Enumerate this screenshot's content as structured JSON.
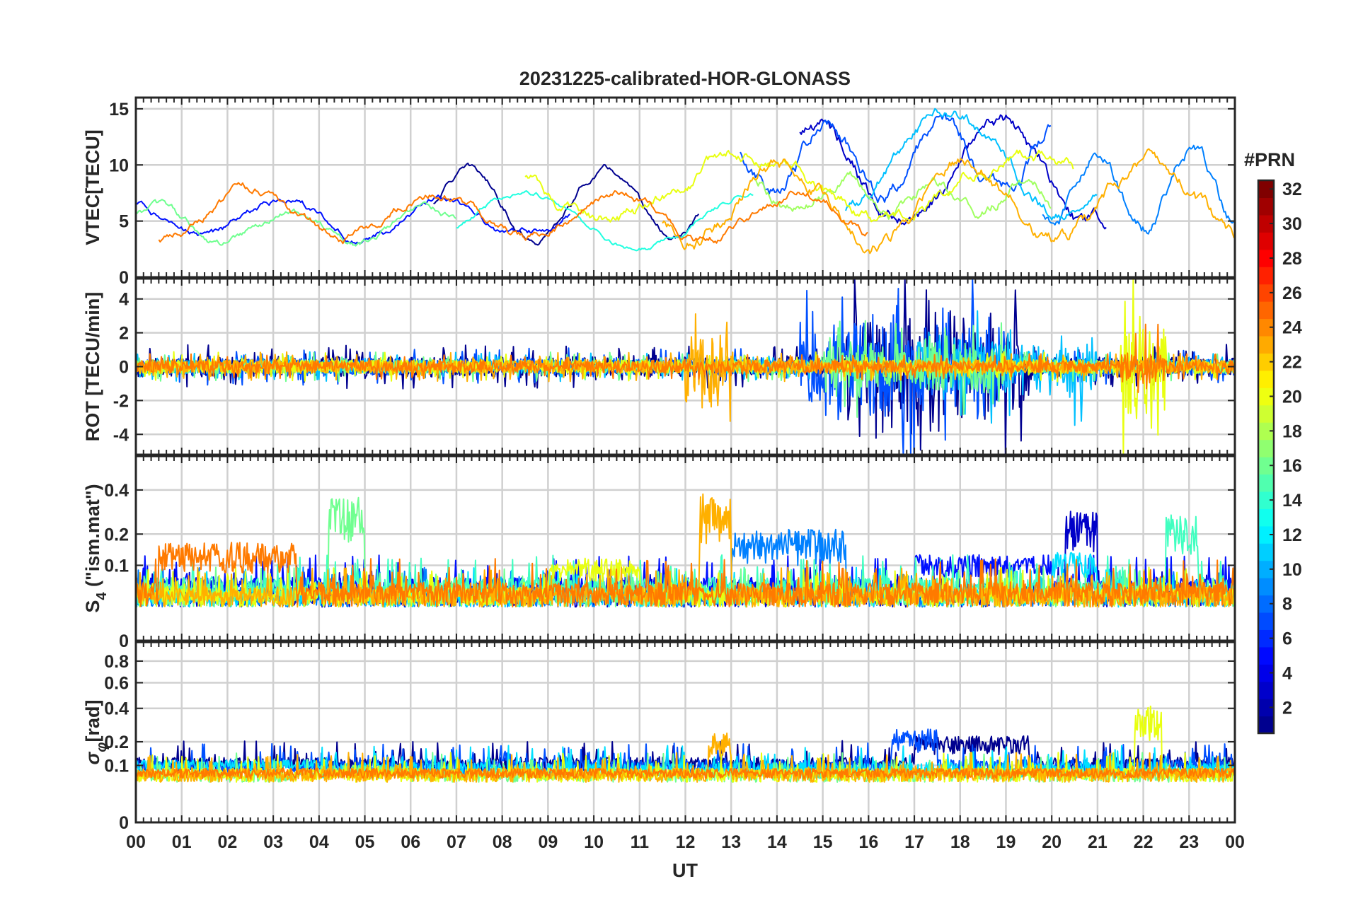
{
  "chart_data": {
    "type": "line",
    "title": "20231225-calibrated-HOR-GLONASS",
    "xlabel": "UT",
    "x_ticks": [
      "00",
      "01",
      "02",
      "03",
      "04",
      "05",
      "06",
      "07",
      "08",
      "09",
      "10",
      "11",
      "12",
      "13",
      "14",
      "15",
      "16",
      "17",
      "18",
      "19",
      "20",
      "21",
      "22",
      "23",
      "00"
    ],
    "xlim": [
      0,
      24
    ],
    "colorbar": {
      "label": "#PRN",
      "range": [
        1,
        32
      ],
      "ticks": [
        "32",
        "30",
        "28",
        "26",
        "24",
        "22",
        "20",
        "18",
        "16",
        "14",
        "12",
        "10",
        "8",
        "6",
        "4",
        "2"
      ],
      "colormap": "jet"
    },
    "panels": [
      {
        "name": "vtec",
        "ylabel": "VTEC[TECU]",
        "ylim": [
          0,
          16
        ],
        "yticks": [
          0,
          5,
          10,
          15
        ],
        "ytick_labels": [
          "0",
          "5",
          "10",
          "15"
        ],
        "series": [
          {
            "prn": 1,
            "color": "#00008f",
            "kind": "walk",
            "start": 6.5,
            "end": 12.3,
            "base": 6.5,
            "amp": 3.0,
            "period": 3.0,
            "noise": 0.4
          },
          {
            "prn": 2,
            "color": "#0000c8",
            "kind": "walk",
            "start": 14.5,
            "end": 21.2,
            "base": 9.0,
            "amp": 4.5,
            "period": 4.0,
            "noise": 0.9
          },
          {
            "prn": 4,
            "color": "#0010ff",
            "kind": "walk",
            "start": 0.0,
            "end": 9.5,
            "base": 5.2,
            "amp": 1.5,
            "period": 3.5,
            "noise": 0.4
          },
          {
            "prn": 6,
            "color": "#0050ff",
            "kind": "walk",
            "start": 13.2,
            "end": 20.0,
            "base": 10.5,
            "amp": 3.0,
            "period": 2.5,
            "noise": 0.9
          },
          {
            "prn": 8,
            "color": "#0080ff",
            "kind": "walk",
            "start": 19.8,
            "end": 24.0,
            "base": 8.0,
            "amp": 3.5,
            "period": 2.0,
            "noise": 0.8
          },
          {
            "prn": 11,
            "color": "#00c0ff",
            "kind": "walk",
            "start": 15.5,
            "end": 21.0,
            "base": 10.0,
            "amp": 4.5,
            "period": 5.0,
            "noise": 0.7
          },
          {
            "prn": 13,
            "color": "#20ffe0",
            "kind": "walk",
            "start": 7.0,
            "end": 13.5,
            "base": 5.0,
            "amp": 2.5,
            "period": 5.0,
            "noise": 0.3
          },
          {
            "prn": 16,
            "color": "#70ff90",
            "kind": "walk",
            "start": 0.0,
            "end": 7.0,
            "base": 4.5,
            "amp": 1.5,
            "period": 3.0,
            "noise": 0.4
          },
          {
            "prn": 18,
            "color": "#a0ff60",
            "kind": "walk",
            "start": 13.5,
            "end": 20.0,
            "base": 7.5,
            "amp": 1.5,
            "period": 2.0,
            "noise": 0.7
          },
          {
            "prn": 20,
            "color": "#e8ff10",
            "kind": "walk",
            "start": 8.5,
            "end": 20.5,
            "base": 8.0,
            "amp": 3.0,
            "period": 6.0,
            "noise": 0.7
          },
          {
            "prn": 22,
            "color": "#ffb000",
            "kind": "walk",
            "start": 11.5,
            "end": 24.0,
            "base": 7.0,
            "amp": 3.5,
            "period": 4.0,
            "noise": 0.8
          },
          {
            "prn": 24,
            "color": "#ff7a00",
            "kind": "walk",
            "start": 0.5,
            "end": 16.0,
            "base": 5.5,
            "amp": 2.0,
            "period": 4.0,
            "noise": 0.5
          }
        ]
      },
      {
        "name": "rot",
        "ylabel": "ROT [TECU/min]",
        "ylim": [
          -5.2,
          5.2
        ],
        "yticks": [
          -4,
          -2,
          0,
          2,
          4
        ],
        "ytick_labels": [
          "-4",
          "-2",
          "0",
          "2",
          "4"
        ],
        "series": [
          {
            "prn": 1,
            "color": "#00008f",
            "kind": "noise",
            "start": 0,
            "end": 24,
            "base": 0,
            "amp": 0.6,
            "spike": 3.5,
            "active": [
              15.5,
              19.5
            ]
          },
          {
            "prn": 6,
            "color": "#0050ff",
            "kind": "noise",
            "start": 0,
            "end": 24,
            "base": 0,
            "amp": 0.5,
            "spike": 3.0,
            "active": [
              14.5,
              19.0
            ]
          },
          {
            "prn": 11,
            "color": "#00c0ff",
            "kind": "noise",
            "start": 0,
            "end": 24,
            "base": 0,
            "amp": 0.4,
            "spike": 1.5,
            "active": [
              17.0,
              21.0
            ]
          },
          {
            "prn": 16,
            "color": "#70ff90",
            "kind": "noise",
            "start": 0,
            "end": 24,
            "base": 0,
            "amp": 0.4,
            "spike": 1.5,
            "active": [
              15.0,
              19.0
            ]
          },
          {
            "prn": 20,
            "color": "#e8ff10",
            "kind": "noise",
            "start": 0,
            "end": 24,
            "base": 0,
            "amp": 0.4,
            "spike": 4.0,
            "active": [
              21.5,
              22.5
            ]
          },
          {
            "prn": 22,
            "color": "#ffb000",
            "kind": "noise",
            "start": 0,
            "end": 24,
            "base": 0,
            "amp": 0.4,
            "spike": 2.5,
            "active": [
              12.0,
              13.0
            ]
          },
          {
            "prn": 24,
            "color": "#ff7a00",
            "kind": "noise",
            "start": 0,
            "end": 24,
            "base": 0,
            "amp": 0.35,
            "spike": 1.0,
            "active": [
              21.5,
              22.5
            ]
          }
        ]
      },
      {
        "name": "s4",
        "ylabel": "S4 (\"ism.mat\")",
        "ylabel_main": "S",
        "ylabel_sub": "4",
        "ylabel_rest": " (\"ism.mat\")",
        "ylim": [
          0,
          0.6
        ],
        "scale": "sqrt",
        "yticks": [
          0,
          0.1,
          0.2,
          0.4
        ],
        "ytick_labels": [
          "0",
          "0.1",
          "0.2",
          "0.4"
        ],
        "series": [
          {
            "prn": 2,
            "color": "#0000c8",
            "kind": "noise",
            "start": 0,
            "end": 24,
            "base": 0.02,
            "amp": 0.03,
            "spike": 0.28,
            "active": [
              20.3,
              21.0
            ]
          },
          {
            "prn": 4,
            "color": "#0010ff",
            "kind": "noise",
            "start": 0,
            "end": 24,
            "base": 0.03,
            "amp": 0.04,
            "spike": 0.1,
            "active": [
              17.0,
              20.0
            ]
          },
          {
            "prn": 8,
            "color": "#0080ff",
            "kind": "noise",
            "start": 0,
            "end": 24,
            "base": 0.02,
            "amp": 0.03,
            "spike": 0.2,
            "active": [
              13.0,
              15.5
            ]
          },
          {
            "prn": 12,
            "color": "#00e0ff",
            "kind": "noise",
            "start": 0,
            "end": 24,
            "base": 0.02,
            "amp": 0.03,
            "spike": 0.12,
            "active": [
              20.0,
              21.0
            ]
          },
          {
            "prn": 14,
            "color": "#40ffc0",
            "kind": "noise",
            "start": 0,
            "end": 24,
            "base": 0.03,
            "amp": 0.04,
            "spike": 0.25,
            "active": [
              22.5,
              23.2
            ]
          },
          {
            "prn": 16,
            "color": "#70ff90",
            "kind": "noise",
            "start": 0,
            "end": 24,
            "base": 0.02,
            "amp": 0.03,
            "spike": 0.35,
            "active": [
              4.2,
              5.0
            ]
          },
          {
            "prn": 20,
            "color": "#e8ff10",
            "kind": "noise",
            "start": 0,
            "end": 24,
            "base": 0.02,
            "amp": 0.03,
            "spike": 0.1,
            "active": [
              9.0,
              11.0
            ]
          },
          {
            "prn": 22,
            "color": "#ffb000",
            "kind": "noise",
            "start": 0,
            "end": 24,
            "base": 0.02,
            "amp": 0.03,
            "spike": 0.36,
            "active": [
              12.3,
              13.0
            ]
          },
          {
            "prn": 24,
            "color": "#ff7a00",
            "kind": "noise",
            "start": 0,
            "end": 24,
            "base": 0.02,
            "amp": 0.04,
            "spike": 0.15,
            "active": [
              0.5,
              3.5
            ]
          }
        ]
      },
      {
        "name": "sigma",
        "ylabel": "σφ[rad]",
        "ylabel_main": "σ",
        "ylabel_sub": "φ",
        "ylabel_rest": "[rad]",
        "ylim": [
          0,
          1.0
        ],
        "scale": "sqrt",
        "yticks": [
          0,
          0.1,
          0.2,
          0.4,
          0.6,
          0.8
        ],
        "ytick_labels": [
          "0",
          "0.1",
          "0.2",
          "0.4",
          "0.6",
          "0.8"
        ],
        "series": [
          {
            "prn": 1,
            "color": "#00008f",
            "kind": "noise",
            "start": 0,
            "end": 24,
            "base": 0.08,
            "amp": 0.05,
            "spike": 0.15,
            "active": [
              17.0,
              19.5
            ]
          },
          {
            "prn": 6,
            "color": "#0050ff",
            "kind": "noise",
            "start": 0,
            "end": 24,
            "base": 0.07,
            "amp": 0.05,
            "spike": 0.2,
            "active": [
              16.5,
              17.5
            ]
          },
          {
            "prn": 12,
            "color": "#00e0ff",
            "kind": "noise",
            "start": 0,
            "end": 24,
            "base": 0.06,
            "amp": 0.05,
            "spike": 0.06,
            "active": [
              0.0,
              4.0
            ]
          },
          {
            "prn": 16,
            "color": "#70ff90",
            "kind": "noise",
            "start": 0,
            "end": 24,
            "base": 0.05,
            "amp": 0.04,
            "spike": 0.05,
            "active": [
              4.0,
              6.0
            ]
          },
          {
            "prn": 20,
            "color": "#e8ff10",
            "kind": "noise",
            "start": 0,
            "end": 24,
            "base": 0.05,
            "amp": 0.04,
            "spike": 0.38,
            "active": [
              21.8,
              22.4
            ]
          },
          {
            "prn": 22,
            "color": "#ffb000",
            "kind": "noise",
            "start": 0,
            "end": 24,
            "base": 0.05,
            "amp": 0.04,
            "spike": 0.2,
            "active": [
              12.5,
              13.0
            ]
          },
          {
            "prn": 24,
            "color": "#ff7a00",
            "kind": "noise",
            "start": 0,
            "end": 24,
            "base": 0.04,
            "amp": 0.04,
            "spike": 0.05,
            "active": [
              0.0,
              24.0
            ]
          }
        ]
      }
    ]
  }
}
